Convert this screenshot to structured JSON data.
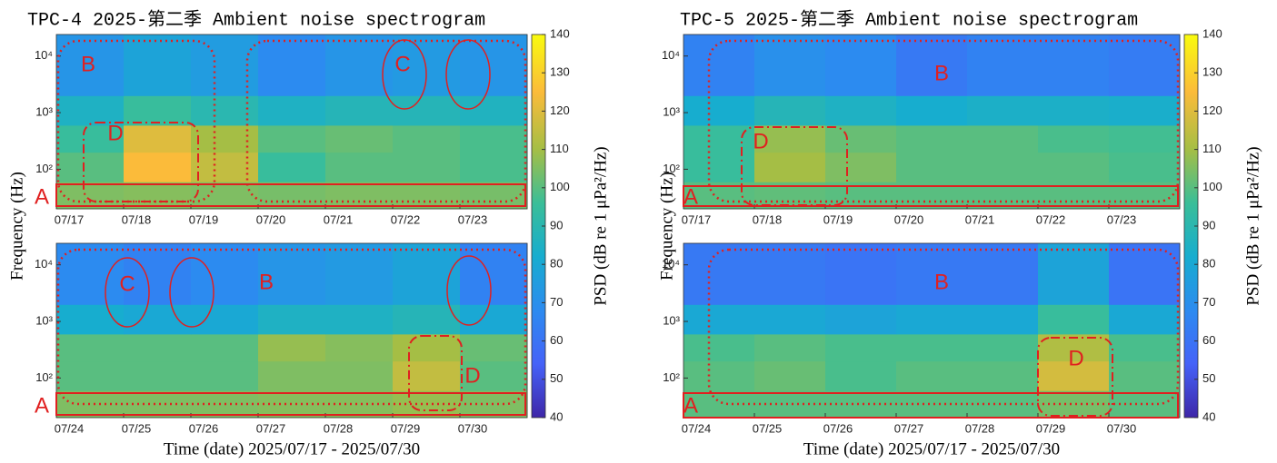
{
  "chart_data": [
    {
      "type": "heatmap",
      "title": "TPC-4 2025-第二季 Ambient noise spectrogram",
      "ylabel": "Frequency (Hz)",
      "colorbar_label": "PSD (dB re 1 μPa²/Hz)",
      "colormap": "parula",
      "clim": [
        40,
        140
      ],
      "cticks": [
        40,
        50,
        60,
        70,
        80,
        90,
        100,
        110,
        120,
        130,
        140
      ],
      "x": [
        "07/17",
        "07/18",
        "07/19",
        "07/20",
        "07/21",
        "07/22",
        "07/23"
      ],
      "y_scale": "log",
      "ylim": [
        20,
        24000
      ],
      "y_bins": [
        20,
        60,
        200,
        600,
        2000,
        24000
      ],
      "yticks": [
        {
          "value": 100,
          "label": "10²"
        },
        {
          "value": 1000,
          "label": "10³"
        },
        {
          "value": 10000,
          "label": "10⁴"
        }
      ],
      "values": [
        [
          105,
          106,
          105,
          104,
          105,
          105,
          104
        ],
        [
          100,
          125,
          115,
          95,
          100,
          100,
          98
        ],
        [
          95,
          120,
          110,
          100,
          102,
          100,
          98
        ],
        [
          85,
          95,
          90,
          85,
          88,
          88,
          86
        ],
        [
          72,
          78,
          75,
          68,
          72,
          74,
          72
        ]
      ],
      "annotations": [
        "A",
        "B",
        "C",
        "D"
      ]
    },
    {
      "type": "heatmap",
      "xlabel": "Time (date) 2025/07/17 - 2025/07/30",
      "x": [
        "07/24",
        "07/25",
        "07/26",
        "07/27",
        "07/28",
        "07/29",
        "07/30"
      ],
      "y_scale": "log",
      "ylim": [
        20,
        24000
      ],
      "y_bins": [
        20,
        60,
        200,
        600,
        2000,
        24000
      ],
      "yticks": [
        {
          "value": 100,
          "label": "10²"
        },
        {
          "value": 1000,
          "label": "10³"
        },
        {
          "value": 10000,
          "label": "10⁴"
        }
      ],
      "values": [
        [
          105,
          105,
          105,
          106,
          106,
          108,
          105
        ],
        [
          100,
          100,
          100,
          105,
          105,
          115,
          100
        ],
        [
          100,
          100,
          100,
          108,
          106,
          110,
          102
        ],
        [
          82,
          80,
          80,
          85,
          85,
          88,
          80
        ],
        [
          68,
          65,
          68,
          72,
          74,
          78,
          65
        ]
      ],
      "annotations": [
        "A",
        "B",
        "C",
        "D"
      ]
    },
    {
      "type": "heatmap",
      "title": "TPC-5 2025-第二季 Ambient noise spectrogram",
      "ylabel": "Frequency (Hz)",
      "colorbar_label": "PSD (dB re 1 μPa²/Hz)",
      "colormap": "parula",
      "clim": [
        40,
        140
      ],
      "cticks": [
        40,
        50,
        60,
        70,
        80,
        90,
        100,
        110,
        120,
        130,
        140
      ],
      "x": [
        "07/17",
        "07/18",
        "07/19",
        "07/20",
        "07/21",
        "07/22",
        "07/23"
      ],
      "y_scale": "log",
      "ylim": [
        20,
        24000
      ],
      "y_bins": [
        20,
        60,
        200,
        600,
        2000,
        24000
      ],
      "yticks": [
        {
          "value": 100,
          "label": "10²"
        },
        {
          "value": 1000,
          "label": "10³"
        },
        {
          "value": 10000,
          "label": "10⁴"
        }
      ],
      "values": [
        [
          100,
          101,
          100,
          100,
          100,
          100,
          100
        ],
        [
          95,
          110,
          105,
          100,
          100,
          100,
          98
        ],
        [
          95,
          108,
          102,
          100,
          100,
          98,
          97
        ],
        [
          82,
          88,
          85,
          82,
          84,
          84,
          83
        ],
        [
          65,
          70,
          68,
          62,
          65,
          65,
          63
        ]
      ],
      "annotations": [
        "A",
        "B",
        "D"
      ]
    },
    {
      "type": "heatmap",
      "xlabel": "Time (date) 2025/07/17 - 2025/07/30",
      "x": [
        "07/24",
        "07/25",
        "07/26",
        "07/27",
        "07/28",
        "07/29",
        "07/30"
      ],
      "y_scale": "log",
      "ylim": [
        20,
        24000
      ],
      "y_bins": [
        20,
        60,
        200,
        600,
        2000,
        24000
      ],
      "yticks": [
        {
          "value": 100,
          "label": "10²"
        },
        {
          "value": 1000,
          "label": "10³"
        },
        {
          "value": 10000,
          "label": "10⁴"
        }
      ],
      "values": [
        [
          100,
          100,
          100,
          100,
          100,
          104,
          100
        ],
        [
          100,
          102,
          98,
          100,
          100,
          118,
          100
        ],
        [
          98,
          100,
          98,
          98,
          98,
          112,
          98
        ],
        [
          80,
          80,
          78,
          80,
          80,
          95,
          80
        ],
        [
          62,
          62,
          60,
          62,
          62,
          78,
          60
        ]
      ],
      "annotations": [
        "A",
        "B",
        "D"
      ]
    }
  ]
}
